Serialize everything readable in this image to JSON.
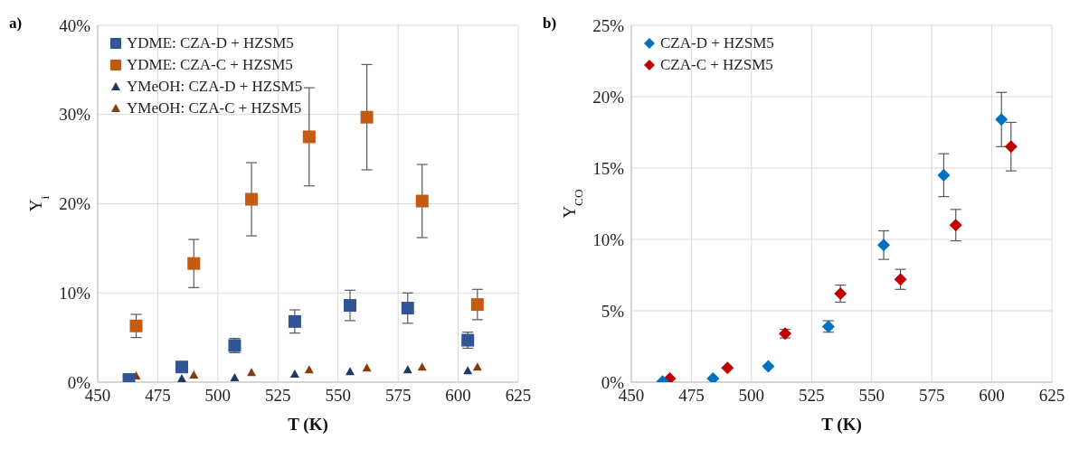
{
  "chart_data": [
    {
      "type": "scatter",
      "xlabel": "T (K)",
      "ylabel": "Y$_{i}$",
      "annotations": [
        "a)"
      ],
      "xlim": [
        450,
        625
      ],
      "xticks": [
        450,
        475,
        500,
        525,
        550,
        575,
        600,
        625
      ],
      "ylim": [
        0,
        40
      ],
      "yticks": [
        {
          "value": 0,
          "label": "0%"
        },
        {
          "value": 10,
          "label": "10%"
        },
        {
          "value": 20,
          "label": "20%"
        },
        {
          "value": 30,
          "label": "30%"
        },
        {
          "value": 40,
          "label": "40%"
        }
      ],
      "grid": true,
      "legend": "top left",
      "series": [
        {
          "name": "YDME: CZA-D + HZSM5",
          "color": "#2f5597",
          "marker": "square",
          "x": [
            463,
            485,
            507,
            532,
            555,
            579,
            604
          ],
          "values": [
            0.3,
            1.7,
            4.1,
            6.8,
            8.6,
            8.3,
            4.7
          ],
          "errors": [
            null,
            null,
            0.8,
            1.3,
            1.7,
            1.7,
            0.9
          ]
        },
        {
          "name": "YDME: CZA-C + HZSM5",
          "color": "#c55a11",
          "marker": "square",
          "x": [
            466,
            490,
            514,
            538,
            562,
            585,
            608
          ],
          "values": [
            6.3,
            13.3,
            20.5,
            27.5,
            29.7,
            20.3,
            8.7
          ],
          "errors": [
            1.3,
            2.7,
            4.1,
            5.5,
            5.9,
            4.1,
            1.7
          ]
        },
        {
          "name": "YMeOH: CZA-D + HZSM5",
          "color": "#1f3864",
          "marker": "triangle",
          "x": [
            485,
            507,
            532,
            555,
            579,
            604
          ],
          "values": [
            0.4,
            0.5,
            0.9,
            1.2,
            1.4,
            1.3
          ]
        },
        {
          "name": "YMeOH: CZA-C + HZSM5",
          "color": "#843c0c",
          "marker": "triangle",
          "x": [
            466,
            490,
            514,
            538,
            562,
            585,
            608
          ],
          "values": [
            0.7,
            0.8,
            1.1,
            1.4,
            1.6,
            1.7,
            1.7
          ]
        }
      ]
    },
    {
      "type": "scatter",
      "xlabel": "T (K)",
      "ylabel": "Y$_{CO}$",
      "annotations": [
        "b)"
      ],
      "xlim": [
        450,
        625
      ],
      "xticks": [
        450,
        475,
        500,
        525,
        550,
        575,
        600,
        625
      ],
      "ylim": [
        0,
        25
      ],
      "yticks": [
        {
          "value": 0,
          "label": "0%"
        },
        {
          "value": 5,
          "label": "5%"
        },
        {
          "value": 10,
          "label": "10%"
        },
        {
          "value": 15,
          "label": "15%"
        },
        {
          "value": 20,
          "label": "20%"
        },
        {
          "value": 25,
          "label": "25%"
        }
      ],
      "grid": true,
      "legend": "top left",
      "series": [
        {
          "name": "CZA-D + HZSM5",
          "color": "#0070c0",
          "marker": "diamond",
          "x": [
            463,
            484,
            507,
            532,
            555,
            580,
            604
          ],
          "values": [
            0.05,
            0.25,
            1.1,
            3.9,
            9.6,
            14.5,
            18.4
          ],
          "errors": [
            null,
            null,
            null,
            0.4,
            1.0,
            1.5,
            1.9
          ]
        },
        {
          "name": "CZA-C + HZSM5",
          "color": "#c00000",
          "marker": "diamond",
          "x": [
            466,
            490,
            514,
            537,
            562,
            585,
            608
          ],
          "values": [
            0.25,
            1.0,
            3.4,
            6.2,
            7.2,
            11.0,
            16.5
          ],
          "errors": [
            null,
            null,
            0.3,
            0.6,
            0.7,
            1.1,
            1.7
          ]
        }
      ]
    }
  ]
}
